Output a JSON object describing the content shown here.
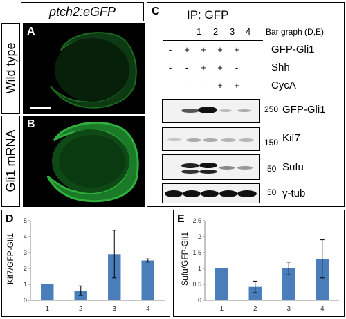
{
  "left_panel": {
    "header": "ptch2:eGFP",
    "rows": [
      {
        "letter": "A",
        "label": "Wild type"
      },
      {
        "letter": "B",
        "label": "Gli1 mRNA"
      }
    ]
  },
  "panel_c": {
    "letter": "C",
    "ip_label": "IP: GFP",
    "lanes": [
      "1",
      "2",
      "3",
      "4"
    ],
    "lane_caption": "Bar graph (D,E)",
    "conditions": [
      {
        "label": "GFP-Gli1",
        "signs": [
          "-",
          "+",
          "+",
          "+",
          "+"
        ]
      },
      {
        "label": "Shh",
        "signs": [
          "-",
          "-",
          "+",
          "+",
          "-"
        ]
      },
      {
        "label": "CycA",
        "signs": [
          "-",
          "-",
          "-",
          "+",
          "+"
        ]
      }
    ],
    "blots": [
      {
        "marker": "250",
        "label": "GFP-Gli1"
      },
      {
        "marker": "150",
        "label": "Kif7"
      },
      {
        "marker": "50",
        "label": "Sufu"
      },
      {
        "marker": "50",
        "label": "γ-tub"
      }
    ]
  },
  "chart_data": [
    {
      "panel": "D",
      "type": "bar",
      "categories": [
        "1",
        "2",
        "3",
        "4"
      ],
      "values": [
        1.0,
        0.6,
        2.9,
        2.5
      ],
      "errors": [
        0.0,
        0.3,
        1.5,
        0.1
      ],
      "xlabel": "",
      "ylabel": "Kif7/GFP-Gli1",
      "ylim": [
        0,
        5
      ],
      "yticks": [
        "0",
        "1",
        "2",
        "3",
        "4",
        "5"
      ],
      "grid": false,
      "bar_color": "#4a7ebb"
    },
    {
      "panel": "E",
      "type": "bar",
      "categories": [
        "1",
        "2",
        "3",
        "4"
      ],
      "values": [
        1.0,
        0.42,
        1.0,
        1.3
      ],
      "errors": [
        0.0,
        0.18,
        0.2,
        0.6
      ],
      "xlabel": "",
      "ylabel": "Sufu/GFP-Gli1",
      "ylim": [
        0,
        2.5
      ],
      "yticks": [
        "0",
        "0.5",
        "1",
        "1.5",
        "2",
        "2.5"
      ],
      "grid": false,
      "bar_color": "#4a7ebb"
    }
  ]
}
